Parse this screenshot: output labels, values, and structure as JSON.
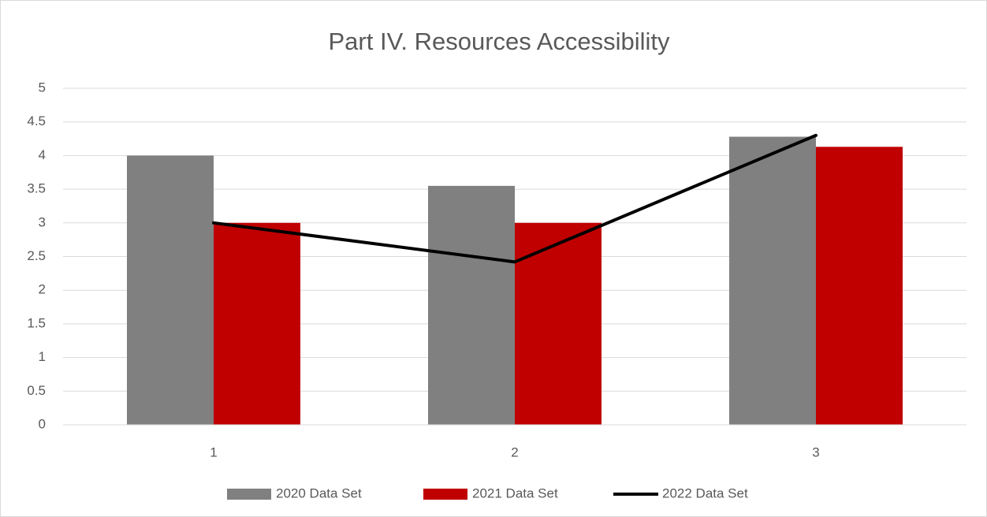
{
  "chart_data": {
    "type": "bar",
    "title": "Part IV. Resources Accessibility",
    "categories": [
      "1",
      "2",
      "3"
    ],
    "series": [
      {
        "name": "2020 Data Set",
        "type": "bar",
        "color": "#808080",
        "values": [
          4.0,
          3.55,
          4.28
        ]
      },
      {
        "name": "2021 Data Set",
        "type": "bar",
        "color": "#c00000",
        "values": [
          3.0,
          3.0,
          4.13
        ]
      },
      {
        "name": "2022 Data Set",
        "type": "line",
        "color": "#000000",
        "values": [
          3.0,
          2.42,
          4.3
        ]
      }
    ],
    "ylim": [
      0,
      5
    ],
    "yticks": [
      0,
      0.5,
      1,
      1.5,
      2,
      2.5,
      3,
      3.5,
      4,
      4.5,
      5
    ],
    "grid": true,
    "legend": "bottom"
  }
}
